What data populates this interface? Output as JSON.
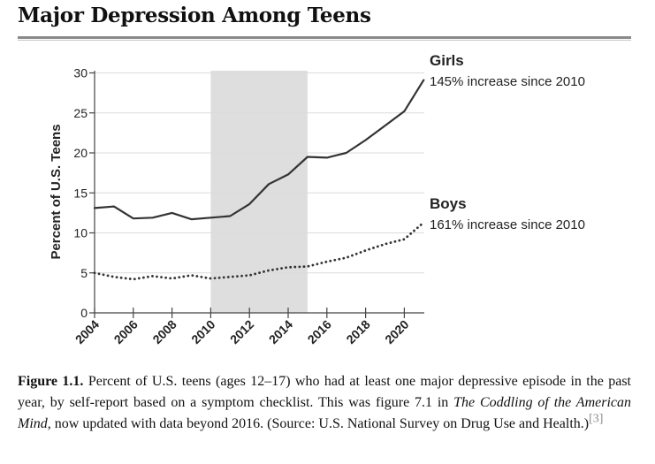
{
  "page": {
    "title": "Major Depression Among Teens"
  },
  "chart_data": {
    "type": "line",
    "ylabel": "Percent of U.S. Teens",
    "xlabel": "",
    "ylim": [
      0,
      30
    ],
    "xlim": [
      2004,
      2021
    ],
    "y_ticks": [
      0,
      5,
      10,
      15,
      20,
      25,
      30
    ],
    "x_ticks": [
      2004,
      2006,
      2008,
      2010,
      2012,
      2014,
      2016,
      2018,
      2020
    ],
    "shaded_region": [
      2010,
      2015
    ],
    "grid": "horizontal",
    "series": [
      {
        "name": "Girls",
        "annotation": "145% increase since 2010",
        "style": "solid",
        "color": "#333333",
        "x": [
          2004,
          2005,
          2006,
          2007,
          2008,
          2009,
          2010,
          2011,
          2012,
          2013,
          2014,
          2015,
          2016,
          2017,
          2018,
          2019,
          2020,
          2021
        ],
        "values": [
          13.1,
          13.3,
          11.8,
          11.9,
          12.5,
          11.7,
          11.9,
          12.1,
          13.6,
          16.1,
          17.3,
          19.5,
          19.4,
          20.0,
          21.6,
          23.4,
          25.2,
          29.1
        ]
      },
      {
        "name": "Boys",
        "annotation": "161% increase since 2010",
        "style": "dotted",
        "color": "#333333",
        "x": [
          2004,
          2005,
          2006,
          2007,
          2008,
          2009,
          2010,
          2011,
          2012,
          2013,
          2014,
          2015,
          2016,
          2017,
          2018,
          2019,
          2020,
          2021
        ],
        "values": [
          5.0,
          4.5,
          4.2,
          4.6,
          4.3,
          4.7,
          4.3,
          4.5,
          4.7,
          5.3,
          5.7,
          5.8,
          6.4,
          6.9,
          7.8,
          8.6,
          9.2,
          11.3
        ]
      }
    ]
  },
  "caption": {
    "label": "Figure 1.1.",
    "text_1": " Percent of U.S. teens (ages 12–17) who had at least one major depressive episode in the past year, by self-report based on a symptom checklist. This was figure 7.1 in ",
    "book_title": "The Coddling of the American Mind",
    "text_2": ", now updated with data beyond 2016. (Source: U.S. National Survey on Drug Use and Health.)",
    "citation": "[3]"
  }
}
